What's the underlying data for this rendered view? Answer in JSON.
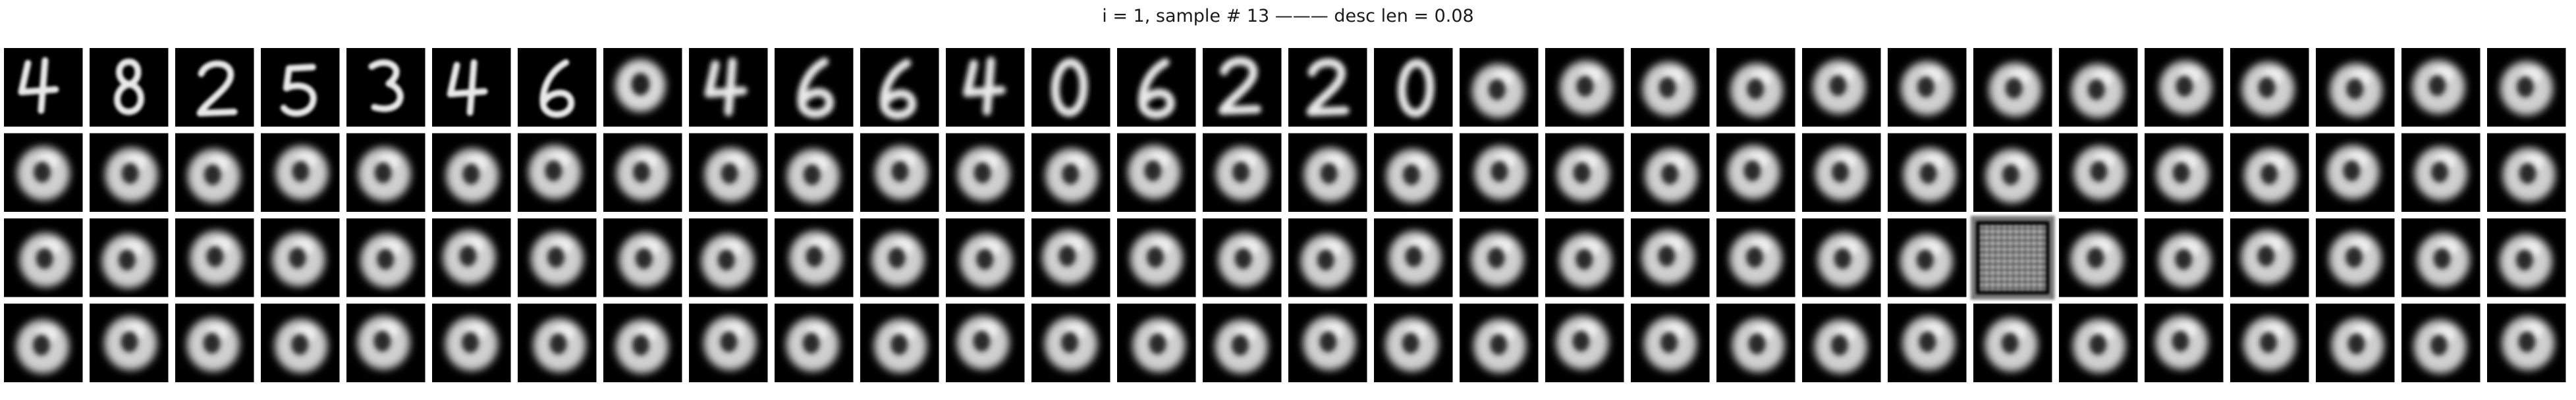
{
  "figure": {
    "title": "i = 1, sample # 13 ——— desc len = 0.08"
  },
  "grid": {
    "rows": 4,
    "cols": 30,
    "tile_kinds": [
      [
        "digit-4",
        "digit-8",
        "digit-2",
        "digit-5",
        "digit-3",
        "digit-4",
        "digit-6",
        "blur-0",
        "digit-4",
        "digit-6",
        "digit-6",
        "digit-4",
        "digit-0",
        "digit-6",
        "digit-2",
        "digit-2",
        "digit-0",
        "blob",
        "blob",
        "blob",
        "blob",
        "blob",
        "blob",
        "blob",
        "blob",
        "blob",
        "blob",
        "blob",
        "blob",
        "blob"
      ],
      [
        "blob",
        "blob",
        "blob",
        "blob",
        "blob",
        "blob",
        "blob",
        "blob",
        "blob",
        "blob",
        "blob",
        "blob",
        "blob",
        "blob",
        "blob",
        "blob",
        "blob",
        "blob",
        "blob",
        "blob",
        "blob",
        "blob",
        "blob",
        "blob",
        "blob",
        "blob",
        "blob",
        "blob",
        "blob",
        "blob"
      ],
      [
        "blob",
        "blob",
        "blob",
        "blob",
        "blob",
        "blob",
        "blob",
        "blob",
        "blob",
        "blob",
        "blob",
        "blob",
        "blob",
        "blob",
        "blob",
        "blob",
        "blob",
        "blob",
        "blob",
        "blob",
        "blob",
        "blob",
        "blob",
        "noise",
        "blob",
        "blob",
        "blob",
        "blob",
        "blob",
        "blob"
      ],
      [
        "blob",
        "blob",
        "blob",
        "blob",
        "blob",
        "blob",
        "blob",
        "blob",
        "blob",
        "blob",
        "blob",
        "blob",
        "blob",
        "blob",
        "blob",
        "blob",
        "blob",
        "blob",
        "blob",
        "blob",
        "blob",
        "blob",
        "blob",
        "blob",
        "blob",
        "blob",
        "blob",
        "blob",
        "blob",
        "blob"
      ]
    ]
  }
}
